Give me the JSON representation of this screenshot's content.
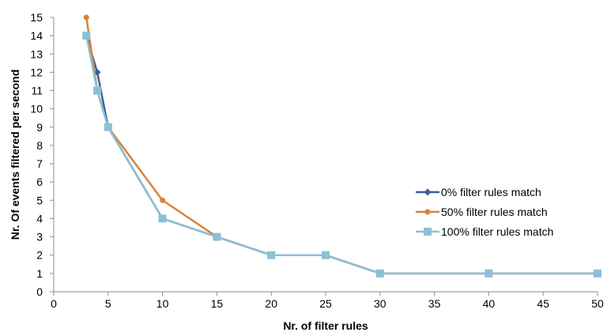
{
  "chart_data": {
    "type": "line",
    "xlabel": "Nr. of filter rules",
    "ylabel": "Nr. Of events filtered per second",
    "xlim": [
      0,
      50
    ],
    "ylim": [
      0,
      15
    ],
    "x_ticks": [
      "0",
      "5",
      "10",
      "15",
      "20",
      "25",
      "30",
      "35",
      "40",
      "45",
      "50"
    ],
    "y_ticks": [
      "0",
      "1",
      "2",
      "3",
      "4",
      "5",
      "6",
      "7",
      "8",
      "9",
      "10",
      "11",
      "12",
      "13",
      "14",
      "15"
    ],
    "grid": false,
    "legend_position": "right",
    "x": [
      3,
      4,
      5,
      10,
      15,
      20,
      25,
      30,
      40,
      50
    ],
    "series": [
      {
        "name": "0% filter rules match",
        "color": "#3b5f9a",
        "marker": "diamond",
        "values": [
          14,
          12,
          9,
          4,
          3,
          2,
          2,
          1,
          1,
          1
        ]
      },
      {
        "name": "50% filter rules match",
        "color": "#d9823b",
        "marker": "circle",
        "values": [
          15,
          11,
          9,
          5,
          3,
          2,
          2,
          1,
          1,
          1
        ]
      },
      {
        "name": "100% filter rules match",
        "color": "#8dbfd6",
        "marker": "square",
        "values": [
          14,
          11,
          9,
          4,
          3,
          2,
          2,
          1,
          1,
          1
        ]
      }
    ]
  }
}
